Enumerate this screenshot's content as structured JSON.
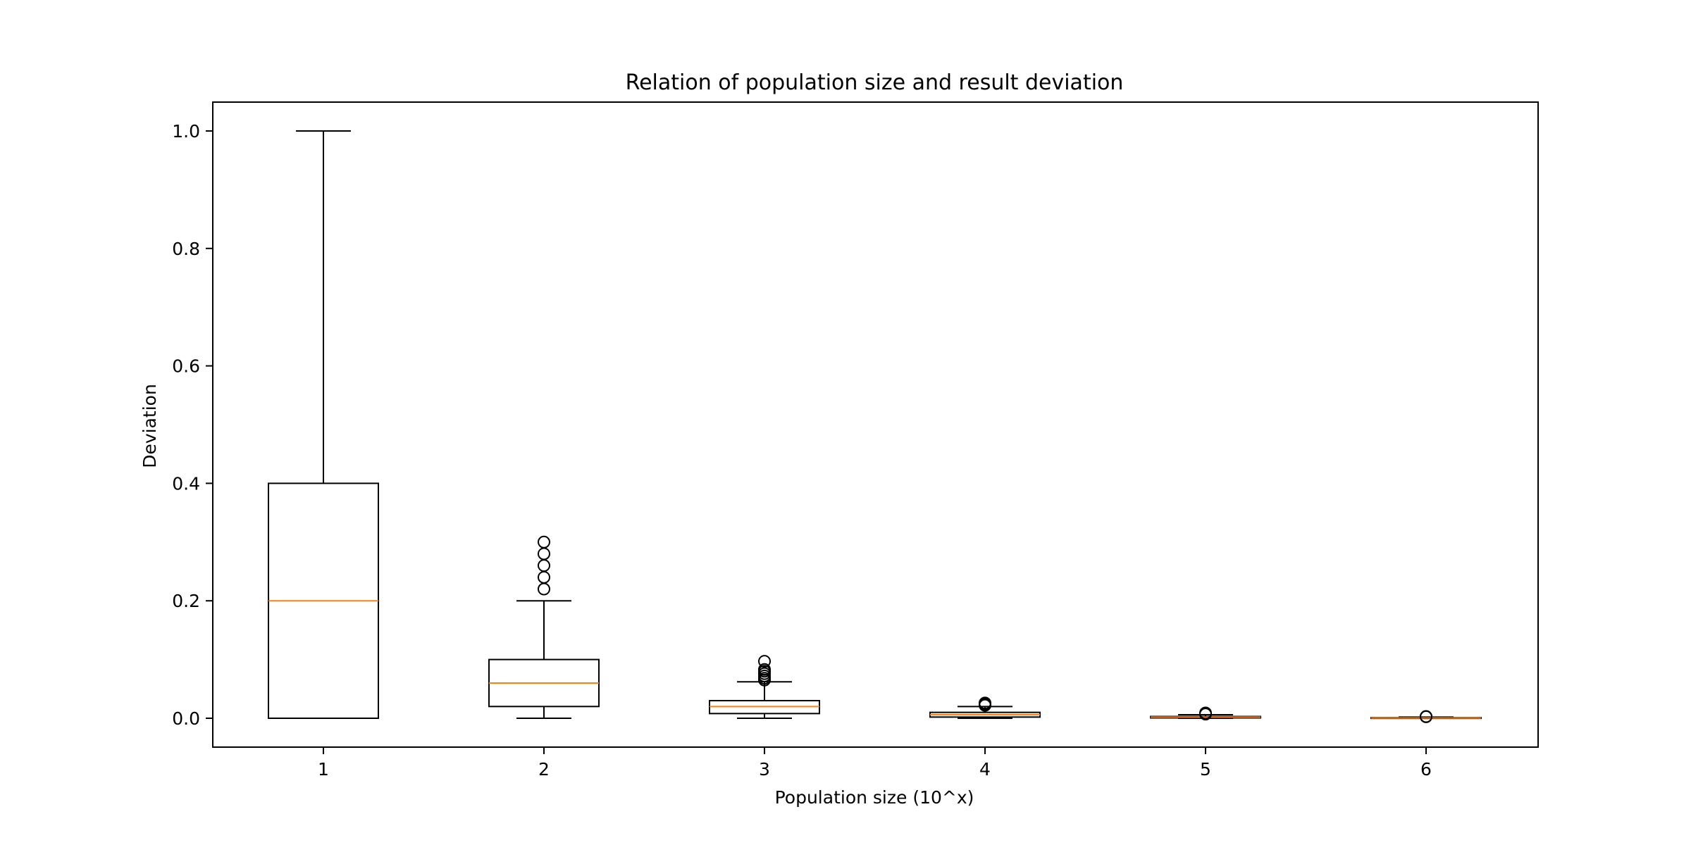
{
  "chart_data": {
    "type": "box",
    "title": "Relation of population size and result deviation",
    "xlabel": "Population size (10^x)",
    "ylabel": "Deviation",
    "ylim": [
      -0.05,
      1.05
    ],
    "yticks": [
      "0.0",
      "0.2",
      "0.4",
      "0.6",
      "0.8",
      "1.0"
    ],
    "grid": false,
    "colors": {
      "box": "#000000",
      "median": "#ff7f0e",
      "background": "#ffffff"
    },
    "boxes": [
      {
        "label": "1",
        "whisker_low": 0.0,
        "q1": 0.0,
        "median": 0.2,
        "q3": 0.4,
        "whisker_high": 1.0,
        "outliers": []
      },
      {
        "label": "2",
        "whisker_low": 0.0,
        "q1": 0.02,
        "median": 0.06,
        "q3": 0.1,
        "whisker_high": 0.2,
        "outliers": [
          0.22,
          0.24,
          0.26,
          0.28,
          0.3
        ]
      },
      {
        "label": "3",
        "whisker_low": 0.0,
        "q1": 0.008,
        "median": 0.02,
        "q3": 0.03,
        "whisker_high": 0.062,
        "outliers": [
          0.065,
          0.068,
          0.072,
          0.076,
          0.08,
          0.083,
          0.097
        ]
      },
      {
        "label": "4",
        "whisker_low": 0.0,
        "q1": 0.002,
        "median": 0.006,
        "q3": 0.01,
        "whisker_high": 0.02,
        "outliers": [
          0.022,
          0.024,
          0.026
        ]
      },
      {
        "label": "5",
        "whisker_low": 0.0,
        "q1": 0.0006,
        "median": 0.002,
        "q3": 0.003,
        "whisker_high": 0.006,
        "outliers": [
          0.007,
          0.009
        ]
      },
      {
        "label": "6",
        "whisker_low": 0.0,
        "q1": 0.0001,
        "median": 0.0005,
        "q3": 0.001,
        "whisker_high": 0.002,
        "outliers": [
          0.0025,
          0.003
        ]
      }
    ]
  }
}
